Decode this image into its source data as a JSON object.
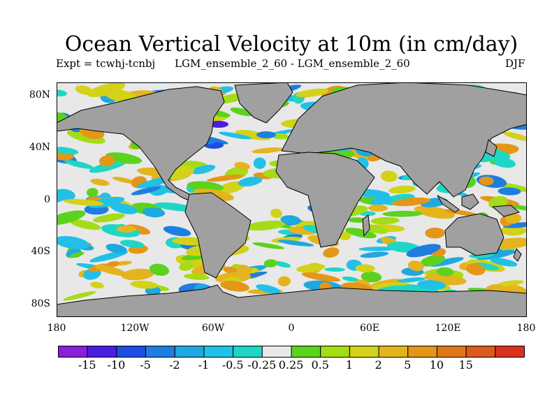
{
  "title": "Ocean Vertical Velocity at 10m (in cm/day)",
  "experiment": "Expt = tcwhj-tcnbj",
  "case": "LGM_ensemble_2_60 - LGM_ensemble_2_60",
  "season": "DJF",
  "lat_labels": [
    "80N",
    "40N",
    "0",
    "40S",
    "80S"
  ],
  "lon_labels": [
    "180",
    "120W",
    "60W",
    "0",
    "60E",
    "120E",
    "180"
  ],
  "colorbar": {
    "colors": [
      "#8a1fd8",
      "#4a1ee0",
      "#1e4ee0",
      "#1e7ee0",
      "#1ea8e0",
      "#22c0e6",
      "#1ed6c6",
      "#e8e8e8",
      "#5ad21e",
      "#a4dc18",
      "#d2d218",
      "#e4b41e",
      "#e49618",
      "#e0761a",
      "#dc5a1e",
      "#d8321e"
    ],
    "labels": [
      "-15",
      "-10",
      "-5",
      "-2",
      "-1",
      "-0.5",
      "-0.25",
      "0.25",
      "0.5",
      "1",
      "2",
      "5",
      "10",
      "15"
    ]
  },
  "land_color": "#a0a0a0"
}
